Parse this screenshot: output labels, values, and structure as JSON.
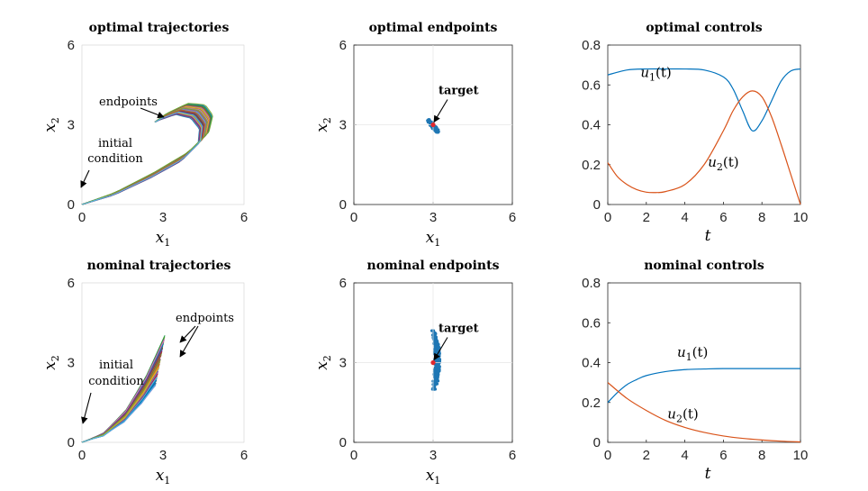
{
  "colors": {
    "u1": "#0072BD",
    "u2": "#D95319",
    "scatter": "#1f77b4",
    "target": "#e0282e"
  },
  "chart_data": [
    {
      "id": "opt_traj",
      "type": "line",
      "title": "optimal trajectories",
      "xlabel": "x1",
      "ylabel": "x2",
      "xlim": [
        0,
        6
      ],
      "ylim": [
        0,
        6
      ],
      "xticks": [
        "0",
        "3",
        "6"
      ],
      "yticks": [
        "0",
        "3",
        "6"
      ],
      "annotations": [
        "endpoints",
        "initial",
        "condition"
      ],
      "series_note": "bundle of random trajectories from (0,0) curving to about (3,3)",
      "curve": {
        "x": [
          0,
          1.2,
          2.6,
          3.8,
          4.5,
          4.6,
          4.3,
          3.7,
          3.0,
          2.7
        ],
        "y": [
          0,
          0.4,
          1.1,
          1.8,
          2.5,
          3.1,
          3.5,
          3.6,
          3.3,
          3.1
        ]
      }
    },
    {
      "id": "opt_end",
      "type": "scatter",
      "title": "optimal endpoints",
      "xlabel": "x1",
      "ylabel": "x2",
      "xlim": [
        0,
        6
      ],
      "ylim": [
        0,
        6
      ],
      "xticks": [
        "0",
        "3",
        "6"
      ],
      "yticks": [
        "0",
        "3",
        "6"
      ],
      "annotations": [
        "target"
      ],
      "target": [
        3,
        3
      ],
      "cloud": {
        "x_range": [
          2.8,
          3.2
        ],
        "y_range": [
          2.7,
          3.2
        ]
      }
    },
    {
      "id": "opt_ctrl",
      "type": "line",
      "title": "optimal controls",
      "xlabel": "t",
      "ylabel": "",
      "xlim": [
        0,
        10
      ],
      "ylim": [
        0,
        0.8
      ],
      "xticks": [
        "0",
        "2",
        "4",
        "6",
        "8",
        "10"
      ],
      "yticks": [
        "0",
        "0.2",
        "0.4",
        "0.6",
        "0.8"
      ],
      "series": [
        {
          "name": "u1(t)",
          "x": [
            0,
            1,
            2,
            3,
            4,
            5,
            6,
            6.5,
            7,
            7.5,
            8,
            8.5,
            9,
            9.5,
            10
          ],
          "y": [
            0.65,
            0.675,
            0.68,
            0.68,
            0.68,
            0.675,
            0.64,
            0.58,
            0.47,
            0.37,
            0.42,
            0.52,
            0.62,
            0.67,
            0.68
          ]
        },
        {
          "name": "u2(t)",
          "x": [
            0,
            0.5,
            1,
            1.5,
            2,
            2.5,
            3,
            4,
            5,
            6,
            6.5,
            7,
            7.5,
            8,
            8.5,
            9,
            9.5,
            10
          ],
          "y": [
            0.21,
            0.14,
            0.1,
            0.075,
            0.062,
            0.06,
            0.065,
            0.1,
            0.2,
            0.37,
            0.47,
            0.54,
            0.57,
            0.54,
            0.44,
            0.3,
            0.15,
            0.0
          ]
        }
      ],
      "labels": [
        "u",
        "(t)"
      ]
    },
    {
      "id": "nom_traj",
      "type": "line",
      "title": "nominal trajectories",
      "xlabel": "x1",
      "ylabel": "x2",
      "xlim": [
        0,
        6
      ],
      "ylim": [
        0,
        6
      ],
      "xticks": [
        "0",
        "3",
        "6"
      ],
      "yticks": [
        "0",
        "3",
        "6"
      ],
      "annotations": [
        "endpoints",
        "initial",
        "condition"
      ],
      "series_note": "bundle of random trajectories from (0,0) fanning to x1 near 3, x2 between 2 and 4",
      "curve": {
        "x": [
          0,
          0.8,
          1.6,
          2.3,
          2.9
        ],
        "y": [
          0,
          0.3,
          1.0,
          2.0,
          3.1
        ]
      }
    },
    {
      "id": "nom_end",
      "type": "scatter",
      "title": "nominal endpoints",
      "xlabel": "x1",
      "ylabel": "x2",
      "xlim": [
        0,
        6
      ],
      "ylim": [
        0,
        6
      ],
      "xticks": [
        "0",
        "3",
        "6"
      ],
      "yticks": [
        "0",
        "3",
        "6"
      ],
      "annotations": [
        "target"
      ],
      "target": [
        3,
        3
      ],
      "cloud": {
        "x_range": [
          2.8,
          3.15
        ],
        "y_range": [
          2.0,
          4.2
        ]
      }
    },
    {
      "id": "nom_ctrl",
      "type": "line",
      "title": "nominal controls",
      "xlabel": "t",
      "ylabel": "",
      "xlim": [
        0,
        10
      ],
      "ylim": [
        0,
        0.8
      ],
      "xticks": [
        "0",
        "2",
        "4",
        "6",
        "8",
        "10"
      ],
      "yticks": [
        "0",
        "0.2",
        "0.4",
        "0.6",
        "0.8"
      ],
      "series": [
        {
          "name": "u1(t)",
          "x": [
            0,
            0.5,
            1,
            1.5,
            2,
            3,
            4,
            5,
            6,
            8,
            10
          ],
          "y": [
            0.2,
            0.25,
            0.29,
            0.315,
            0.335,
            0.355,
            0.365,
            0.368,
            0.37,
            0.37,
            0.37
          ]
        },
        {
          "name": "u2(t)",
          "x": [
            0,
            1,
            2,
            3,
            4,
            5,
            6,
            7,
            8,
            9,
            10
          ],
          "y": [
            0.3,
            0.22,
            0.16,
            0.11,
            0.075,
            0.05,
            0.032,
            0.02,
            0.012,
            0.006,
            0.002
          ]
        }
      ],
      "labels": [
        "u",
        "(t)"
      ]
    }
  ]
}
